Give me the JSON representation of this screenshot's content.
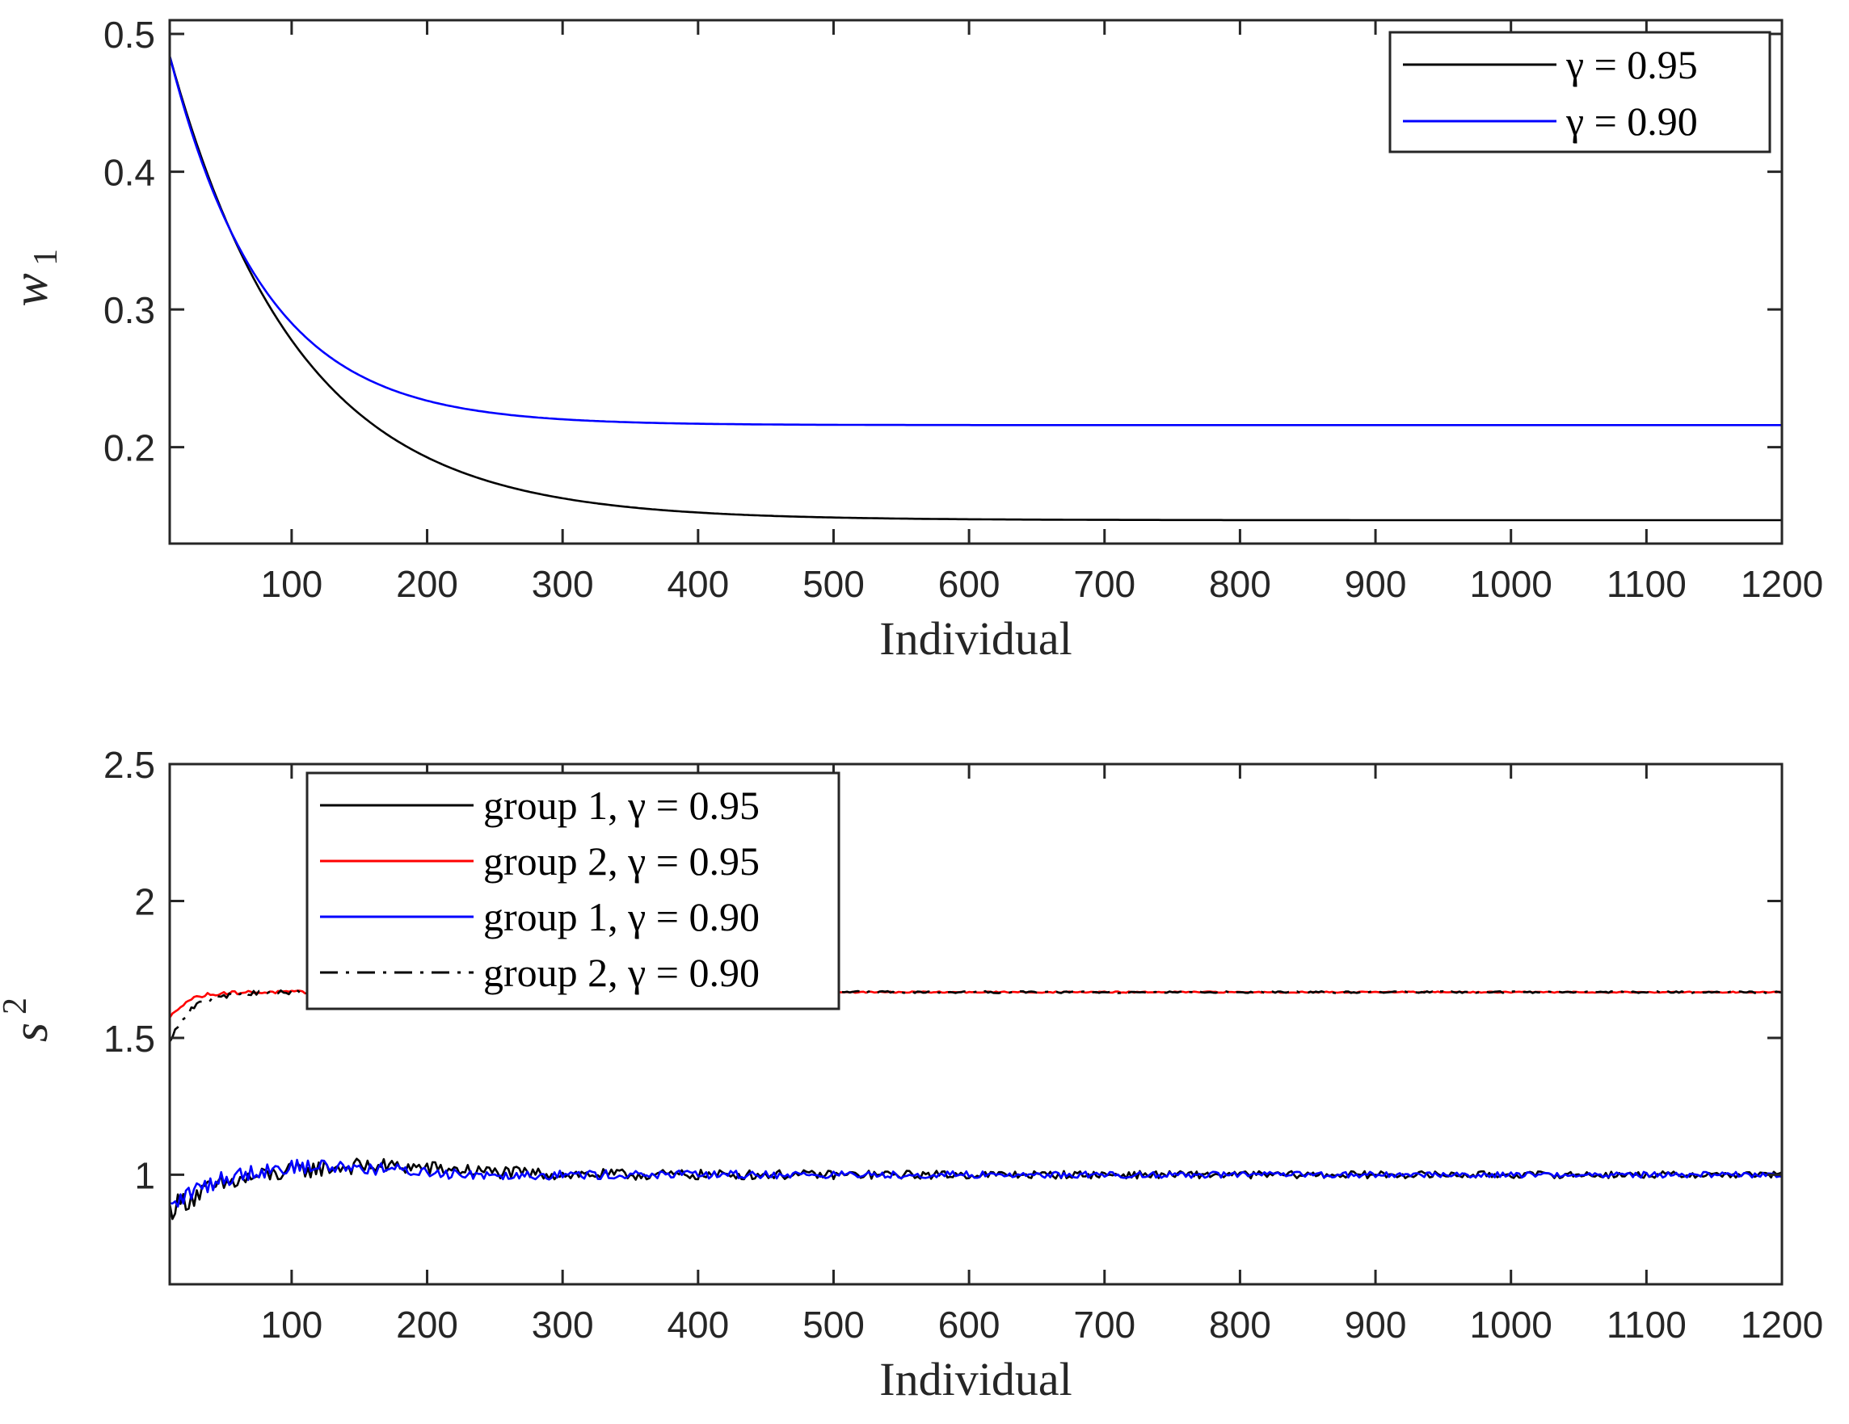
{
  "chart_data": [
    {
      "type": "line",
      "xlabel": "Individual",
      "ylabel": "w",
      "ylabel_sub": "1",
      "xlim": [
        10,
        1200
      ],
      "ylim": [
        0.13,
        0.51
      ],
      "xticks": [
        100,
        200,
        300,
        400,
        500,
        600,
        700,
        800,
        900,
        1000,
        1100,
        1200
      ],
      "xtick_labels": [
        "100",
        "200",
        "300",
        "400",
        "500",
        "600",
        "700",
        "800",
        "900",
        "1000",
        "1100",
        "1200"
      ],
      "yticks": [
        0.2,
        0.3,
        0.4,
        0.5
      ],
      "ytick_labels": [
        "0.2",
        "0.3",
        "0.4",
        "0.5"
      ],
      "legend_position": "top-right",
      "series": [
        {
          "name": "γ = 0.95",
          "color": "#000000",
          "style": "solid",
          "model": "exp",
          "start": 0.484,
          "end": 0.147,
          "tau": 95,
          "noise": 0
        },
        {
          "name": "γ = 0.90",
          "color": "#0000ff",
          "style": "solid",
          "model": "exp",
          "start": 0.484,
          "end": 0.216,
          "tau": 70,
          "noise": 0
        }
      ]
    },
    {
      "type": "line",
      "xlabel": "Individual",
      "ylabel": "s",
      "ylabel_sup": "2",
      "xlim": [
        10,
        1200
      ],
      "ylim": [
        0.6,
        2.5
      ],
      "xticks": [
        100,
        200,
        300,
        400,
        500,
        600,
        700,
        800,
        900,
        1000,
        1100,
        1200
      ],
      "xtick_labels": [
        "100",
        "200",
        "300",
        "400",
        "500",
        "600",
        "700",
        "800",
        "900",
        "1000",
        "1100",
        "1200"
      ],
      "yticks": [
        1,
        1.5,
        2,
        2.5
      ],
      "ytick_labels": [
        "1",
        "1.5",
        "2",
        "2.5"
      ],
      "legend_position": "top-left",
      "series": [
        {
          "name": "group 1, γ = 0.95",
          "color": "#000000",
          "style": "solid",
          "model": "bump",
          "start": 0.87,
          "end": 1.0,
          "tau": 40,
          "bump": 0.035,
          "bump_center": 150,
          "bump_width": 90,
          "noise": 0.012
        },
        {
          "name": "group 2, γ = 0.95",
          "color": "#ff0000",
          "style": "solid",
          "model": "exp",
          "start": 1.57,
          "end": 1.667,
          "tau": 12,
          "noise": 0.002
        },
        {
          "name": "group 1, γ = 0.90",
          "color": "#0000ff",
          "style": "solid",
          "model": "bump",
          "start": 0.87,
          "end": 1.0,
          "tau": 30,
          "bump": 0.035,
          "bump_center": 110,
          "bump_width": 80,
          "noise": 0.01
        },
        {
          "name": "group 2, γ = 0.90",
          "color": "#000000",
          "style": "dashdot",
          "model": "exp",
          "start": 1.48,
          "end": 1.667,
          "tau": 15,
          "noise": 0.003
        }
      ]
    }
  ]
}
